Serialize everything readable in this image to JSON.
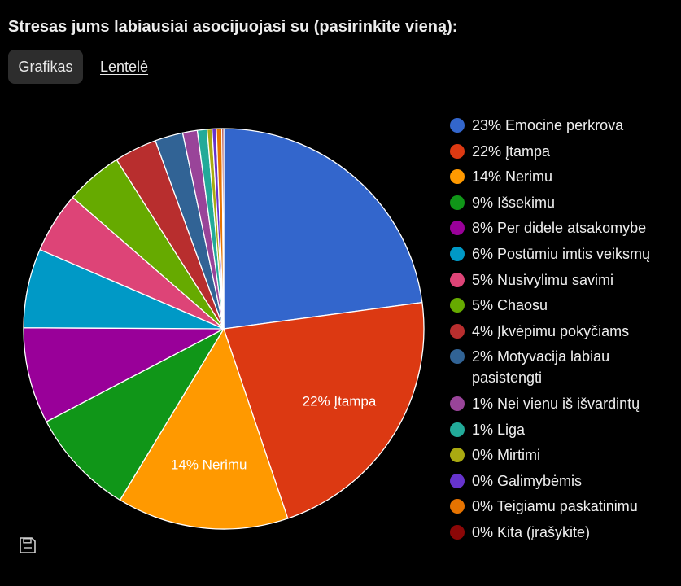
{
  "title": "Stresas jums labiausiai asocijuojasi su (pasirinkite vieną):",
  "tabs": [
    {
      "label": "Grafikas",
      "active": true
    },
    {
      "label": "Lentelė",
      "active": false
    }
  ],
  "save_icon": "save-icon",
  "chart_data": {
    "type": "pie",
    "slices": [
      {
        "label": "23% Emocine perkrova",
        "value": 23.3,
        "color": "#3366cc"
      },
      {
        "label": "22% Įtampa",
        "value": 22.3,
        "color": "#dc3912",
        "slice_label": "22% Įtampa"
      },
      {
        "label": "14% Nerimu",
        "value": 14.1,
        "color": "#ff9900",
        "slice_label": "14% Nerimu"
      },
      {
        "label": "9% Išsekimu",
        "value": 8.8,
        "color": "#109618"
      },
      {
        "label": "8% Per didele atsakomybe",
        "value": 7.9,
        "color": "#990099"
      },
      {
        "label": "6% Postūmiu imtis veiksmų",
        "value": 6.5,
        "color": "#0099c6"
      },
      {
        "label": "5% Nusivylimu savimi",
        "value": 5.0,
        "color": "#dd4477"
      },
      {
        "label": "5% Chaosu",
        "value": 4.7,
        "color": "#66aa00"
      },
      {
        "label": "4% Įkvėpimu pokyčiams",
        "value": 3.5,
        "color": "#b82e2e"
      },
      {
        "label": "2% Motyvacija labiau pasistengti",
        "value": 2.3,
        "color": "#316395"
      },
      {
        "label": "1% Nei vienu iš išvardintų",
        "value": 1.2,
        "color": "#994499"
      },
      {
        "label": "1% Liga",
        "value": 0.8,
        "color": "#22aa99"
      },
      {
        "label": "0% Mirtimi",
        "value": 0.4,
        "color": "#aaaa11"
      },
      {
        "label": "0% Galimybėmis",
        "value": 0.35,
        "color": "#6633cc"
      },
      {
        "label": "0% Teigiamu paskatinimu",
        "value": 0.45,
        "color": "#e67300"
      },
      {
        "label": "0% Kita (įrašykite)",
        "value": 0.15,
        "color": "#8b0707"
      }
    ]
  }
}
